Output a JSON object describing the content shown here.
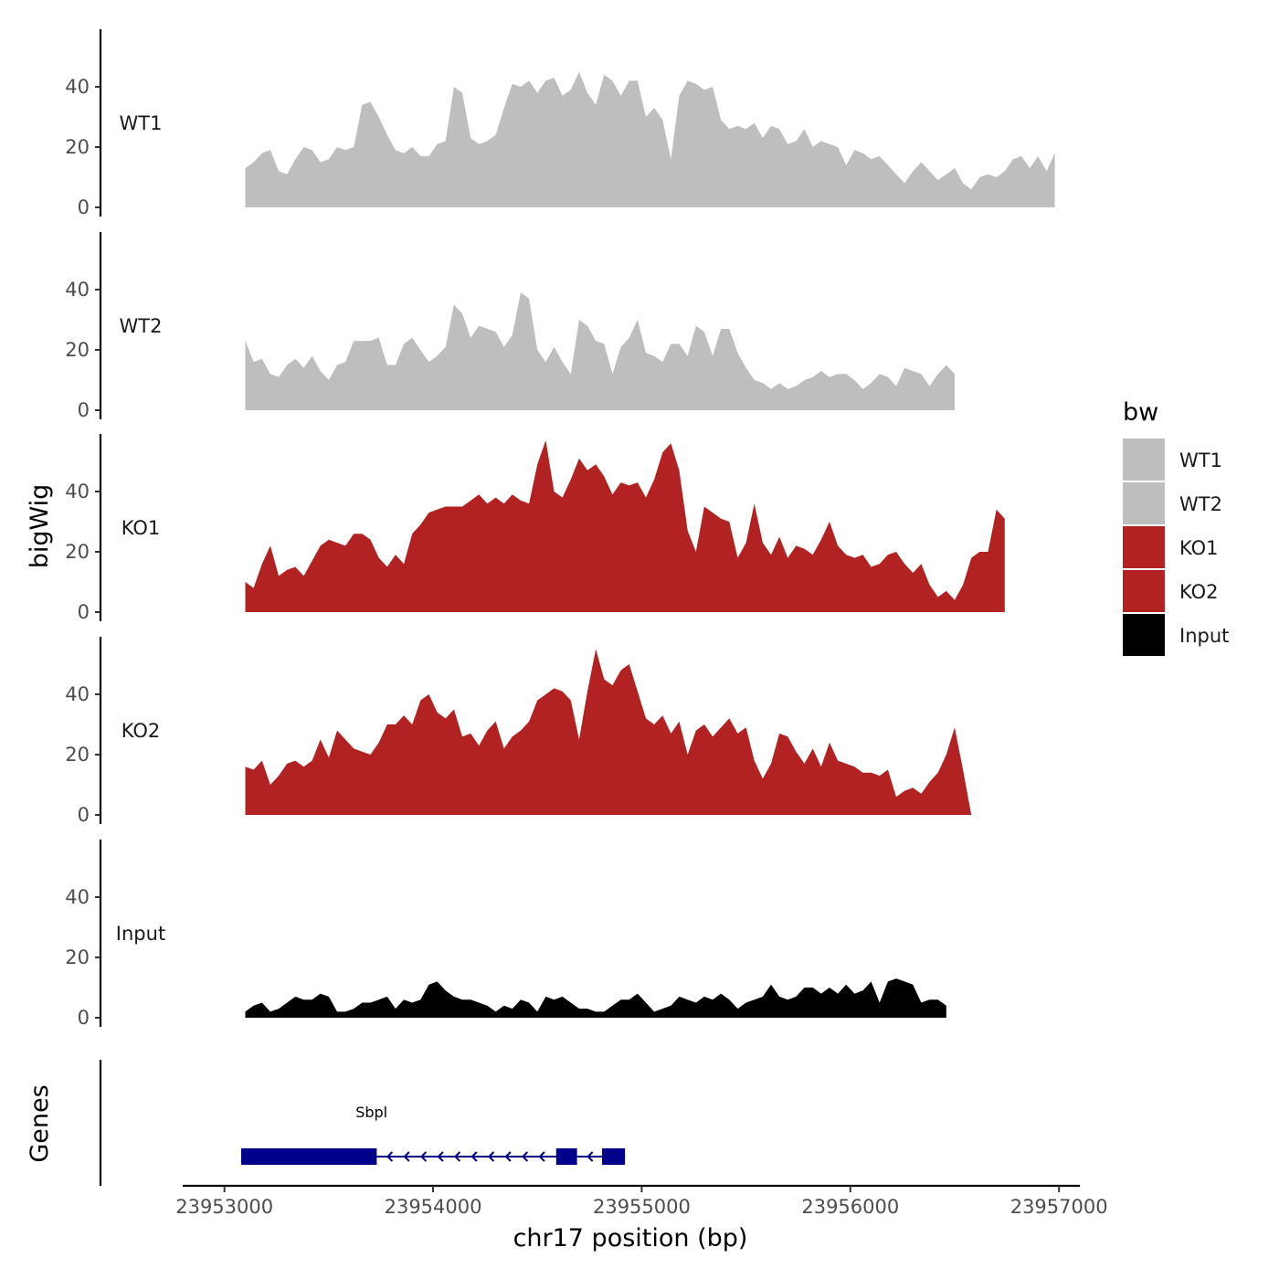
{
  "chart_data": {
    "type": "area",
    "chromosome": "chr17",
    "xlabel": "chr17 position (bp)",
    "ylabel": "bigWig",
    "genes_label": "Genes",
    "xlim": [
      23952800,
      23957100
    ],
    "ylim": [
      0,
      60
    ],
    "x_ticks": [
      23953000,
      23954000,
      23955000,
      23956000,
      23957000
    ],
    "x_tick_labels": [
      "23953000",
      "23954000",
      "23955000",
      "23956000",
      "23957000"
    ],
    "y_ticks": [
      0,
      20,
      40
    ],
    "y_tick_labels": [
      "0",
      "20",
      "40"
    ],
    "legend": {
      "title": "bw",
      "position": "right",
      "entries": [
        {
          "label": "WT1",
          "color": "#bebebe"
        },
        {
          "label": "WT2",
          "color": "#bebebe"
        },
        {
          "label": "KO1",
          "color": "#b22222"
        },
        {
          "label": "KO2",
          "color": "#b22222"
        },
        {
          "label": "Input",
          "color": "#000000"
        }
      ]
    },
    "series": [
      {
        "name": "WT1",
        "color": "#bebebe",
        "start": 23953100,
        "step": 40,
        "values": [
          13,
          15,
          18,
          19,
          12,
          11,
          16,
          20,
          19,
          15,
          16,
          20,
          19,
          20,
          34,
          35,
          30,
          24,
          19,
          18,
          20,
          17,
          17,
          21,
          22,
          40,
          38,
          23,
          21,
          22,
          24,
          33,
          41,
          40,
          42,
          38,
          42,
          43,
          37,
          39,
          45,
          38,
          34,
          44,
          42,
          37,
          42,
          42,
          30,
          33,
          29,
          16,
          37,
          42,
          41,
          39,
          40,
          29,
          26,
          27,
          26,
          28,
          23,
          27,
          26,
          21,
          22,
          26,
          20,
          22,
          21,
          20,
          14,
          19,
          18,
          16,
          17,
          14,
          11,
          8,
          12,
          15,
          12,
          9,
          11,
          13,
          8,
          6,
          10,
          11,
          10,
          12,
          16,
          17,
          13,
          17,
          12,
          18
        ]
      },
      {
        "name": "WT2",
        "color": "#bebebe",
        "start": 23953100,
        "step": 40,
        "values": [
          23,
          16,
          17,
          12,
          11,
          15,
          17,
          14,
          18,
          13,
          10,
          15,
          16,
          23,
          23,
          23,
          24,
          15,
          15,
          22,
          24,
          20,
          16,
          18,
          21,
          35,
          32,
          24,
          28,
          27,
          26,
          21,
          25,
          39,
          37,
          20,
          16,
          21,
          16,
          12,
          30,
          28,
          23,
          22,
          12,
          21,
          24,
          30,
          19,
          18,
          16,
          22,
          22,
          18,
          28,
          26,
          18,
          27,
          27,
          19,
          14,
          10,
          9,
          7,
          9,
          7,
          8,
          10,
          11,
          13,
          11,
          12,
          12,
          10,
          7,
          9,
          12,
          11,
          8,
          14,
          13,
          12,
          8,
          12,
          15,
          12
        ]
      },
      {
        "name": "KO1",
        "color": "#b22222",
        "start": 23953100,
        "step": 40,
        "values": [
          10,
          8,
          16,
          22,
          12,
          14,
          15,
          12,
          17,
          22,
          24,
          23,
          22,
          26,
          26,
          24,
          18,
          15,
          19,
          16,
          26,
          29,
          33,
          34,
          35,
          35,
          35,
          37,
          39,
          36,
          38,
          36,
          39,
          37,
          36,
          49,
          57,
          40,
          38,
          44,
          51,
          47,
          49,
          45,
          39,
          43,
          42,
          43,
          38,
          44,
          53,
          56,
          47,
          27,
          20,
          35,
          33,
          31,
          30,
          18,
          23,
          36,
          23,
          19,
          25,
          18,
          22,
          21,
          19,
          24,
          30,
          22,
          19,
          18,
          19,
          15,
          16,
          19,
          20,
          16,
          13,
          16,
          9,
          5,
          7,
          4,
          9,
          18,
          20,
          20,
          34,
          31
        ]
      },
      {
        "name": "KO2",
        "color": "#b22222",
        "start": 23953100,
        "step": 40,
        "values": [
          16,
          15,
          18,
          10,
          13,
          17,
          18,
          16,
          18,
          25,
          19,
          28,
          25,
          22,
          21,
          20,
          24,
          30,
          30,
          33,
          30,
          38,
          40,
          34,
          32,
          35,
          26,
          27,
          23,
          28,
          31,
          22,
          26,
          28,
          31,
          38,
          40,
          42,
          41,
          38,
          25,
          41,
          55,
          45,
          43,
          48,
          50,
          41,
          32,
          30,
          33,
          27,
          31,
          20,
          28,
          30,
          26,
          29,
          32,
          27,
          29,
          18,
          12,
          17,
          27,
          26,
          21,
          17,
          22,
          16,
          24,
          18,
          17,
          16,
          14,
          14,
          13,
          15,
          6,
          8,
          9,
          7,
          11,
          14,
          20,
          29,
          15,
          0
        ]
      },
      {
        "name": "Input",
        "color": "#000000",
        "start": 23953100,
        "step": 40,
        "values": [
          2,
          4,
          5,
          2,
          3,
          5,
          7,
          6,
          6,
          8,
          7,
          2,
          2,
          3,
          5,
          5,
          6,
          7,
          3,
          6,
          5,
          6,
          11,
          12,
          9,
          7,
          6,
          6,
          5,
          4,
          2,
          4,
          3,
          6,
          5,
          2,
          7,
          6,
          7,
          5,
          3,
          3,
          2,
          2,
          4,
          6,
          6,
          8,
          5,
          2,
          3,
          4,
          7,
          6,
          5,
          7,
          6,
          8,
          6,
          3,
          5,
          6,
          7,
          11,
          7,
          6,
          7,
          10,
          10,
          8,
          10,
          8,
          11,
          8,
          9,
          12,
          5,
          12,
          13,
          12,
          11,
          5,
          6,
          6,
          4
        ]
      }
    ],
    "genes": [
      {
        "name": "Sbpl",
        "strand": "-",
        "start": 23953080,
        "end": 23954920,
        "exons": [
          [
            23953080,
            23953730
          ],
          [
            23954590,
            23954690
          ],
          [
            23954810,
            23954920
          ]
        ]
      }
    ]
  }
}
